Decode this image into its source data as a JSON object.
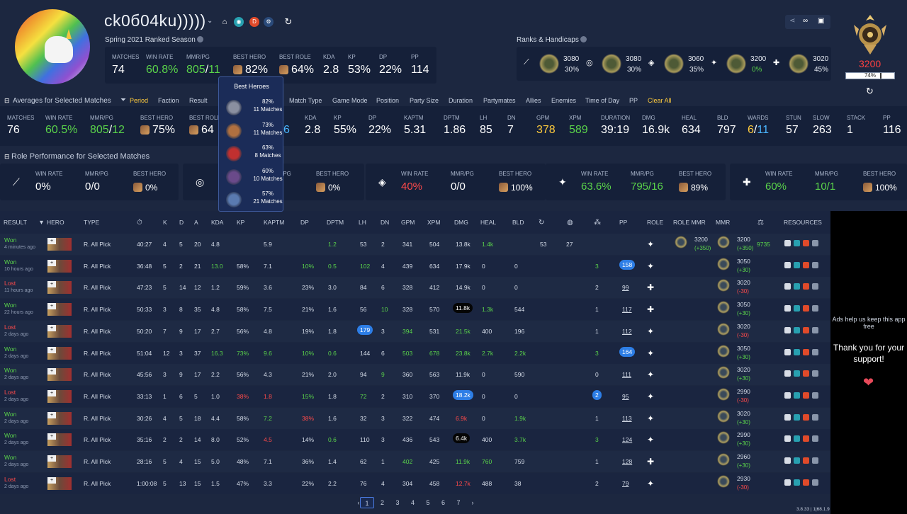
{
  "profile": {
    "name": "ck0б04ku)))))",
    "season": "Spring 2021 Ranked Season"
  },
  "summary": [
    {
      "label": "MATCHES",
      "value": "74",
      "color": "#ffffff"
    },
    {
      "label": "WIN RATE",
      "value": "60.8%",
      "color": "#5ad44a"
    },
    {
      "label": "MMR/PG",
      "value": "805",
      "value2": "11",
      "color": "#5ad44a"
    },
    {
      "label": "BEST HERO",
      "value": "82%",
      "color": "#ffffff"
    },
    {
      "label": "BEST ROLE",
      "value": "64%",
      "color": "#ffffff"
    },
    {
      "label": "KDA",
      "value": "2.8",
      "color": "#ffffff"
    },
    {
      "label": "KP",
      "value": "53%",
      "color": "#ffffff"
    },
    {
      "label": "DP",
      "value": "22%",
      "color": "#ffffff"
    },
    {
      "label": "PP",
      "value": "114",
      "color": "#ffffff"
    }
  ],
  "ranks_title": "Ranks & Handicaps",
  "ranks": [
    {
      "icon": "sword-icon",
      "mmr": "3080",
      "pct": "30%",
      "pct_color": "#e8ecf4"
    },
    {
      "icon": "target-icon",
      "mmr": "3080",
      "pct": "30%",
      "pct_color": "#e8ecf4"
    },
    {
      "icon": "shield-icon",
      "mmr": "3060",
      "pct": "35%",
      "pct_color": "#e8ecf4"
    },
    {
      "icon": "hand-icon",
      "mmr": "3200",
      "pct": "0%",
      "pct_color": "#5ad44a"
    },
    {
      "icon": "heal-icon",
      "mmr": "3020",
      "pct": "45%",
      "pct_color": "#e8ecf4"
    }
  ],
  "mmr_big": "3200",
  "mmr_pct": "74%",
  "averages_title": "Averages for Selected Matches",
  "filters": [
    "Period",
    "Faction",
    "Result",
    "Match Type",
    "Game Mode",
    "Position",
    "Party Size",
    "Duration",
    "Partymates",
    "Allies",
    "Enemies",
    "Time of Day",
    "PP",
    "Clear All"
  ],
  "averages": [
    {
      "label": "MATCHES",
      "value": "76",
      "color": "#ffffff"
    },
    {
      "label": "WIN RATE",
      "value": "60.5%",
      "color": "#5ad44a"
    },
    {
      "label": "MMR/PG",
      "value": "805",
      "value2": "12",
      "color": "#5ad44a"
    },
    {
      "label": "BEST HERO",
      "value": "75%",
      "color": "#ffffff"
    },
    {
      "label": "BEST ROLE",
      "value": "64",
      "color": "#ffffff"
    },
    {
      "label": "KDA",
      "value": "2.8",
      "color": "#ffffff"
    },
    {
      "label": "KP",
      "value": "55%",
      "color": "#ffffff"
    },
    {
      "label": "DP",
      "value": "22%",
      "color": "#ffffff"
    },
    {
      "label": "KAPTM",
      "value": "5.31",
      "color": "#ffffff"
    },
    {
      "label": "DPTM",
      "value": "1.86",
      "color": "#ffffff"
    },
    {
      "label": "LH",
      "value": "85",
      "color": "#ffffff"
    },
    {
      "label": "DN",
      "value": "7",
      "color": "#ffffff"
    },
    {
      "label": "GPM",
      "value": "378",
      "color": "#ffcb3d"
    },
    {
      "label": "XPM",
      "value": "589",
      "color": "#5ad44a"
    },
    {
      "label": "DURATION",
      "value": "39:19",
      "color": "#ffffff"
    },
    {
      "label": "DMG",
      "value": "16.9k",
      "color": "#ffffff"
    },
    {
      "label": "HEAL",
      "value": "634",
      "color": "#ffffff"
    },
    {
      "label": "BLD",
      "value": "797",
      "color": "#ffffff"
    },
    {
      "label": "WARDS",
      "value": "6",
      "value2": "11",
      "color": "#ffcb3d"
    },
    {
      "label": "STUN",
      "value": "57",
      "color": "#ffffff"
    },
    {
      "label": "SLOW",
      "value": "263",
      "color": "#ffffff"
    },
    {
      "label": "STACK",
      "value": "1",
      "color": "#ffffff"
    },
    {
      "label": "PP",
      "value": "116",
      "color": "#ffffff"
    }
  ],
  "avg_partial": "6",
  "role_title": "Role Performance for Selected Matches",
  "roles": [
    {
      "icon": "sword-icon",
      "wr": "0%",
      "wr_color": "#ffffff",
      "mmr": "0/0",
      "mmr_color": "#ffffff",
      "best": "0%"
    },
    {
      "icon": "target-icon",
      "wr": "",
      "wr_color": "#ffffff",
      "mmr": "0",
      "mmr_color": "#ffffff",
      "best": "0%"
    },
    {
      "icon": "shield-icon",
      "wr": "40%",
      "wr_color": "#ff4a4a",
      "mmr": "0/0",
      "mmr_color": "#ffffff",
      "best": "100%"
    },
    {
      "icon": "hand-icon",
      "wr": "63.6%",
      "wr_color": "#5ad44a",
      "mmr": "795/16",
      "mmr_color": "#5ad44a",
      "best": "89%"
    },
    {
      "icon": "heal-icon",
      "wr": "60%",
      "wr_color": "#5ad44a",
      "mmr": "10/1",
      "mmr_color": "#5ad44a",
      "best": "100%"
    }
  ],
  "role_labels": {
    "wr": "WIN RATE",
    "mmr": "MMR/PG",
    "best": "BEST HERO"
  },
  "tooltip": {
    "title": "Best Heroes",
    "rows": [
      {
        "pct": "82%",
        "matches": "11 Matches"
      },
      {
        "pct": "73%",
        "matches": "11 Matches"
      },
      {
        "pct": "63%",
        "matches": "8 Matches"
      },
      {
        "pct": "60%",
        "matches": "10 Matches"
      },
      {
        "pct": "57%",
        "matches": "21 Matches"
      }
    ]
  },
  "table": {
    "headers": {
      "result": "RESULT",
      "hero": "HERO",
      "type": "TYPE",
      "k": "K",
      "d": "D",
      "a": "A",
      "kda": "KDA",
      "kp": "KP",
      "kaptm": "KAPTM",
      "dp": "DP",
      "dptm": "DPTM",
      "lh": "LH",
      "dn": "DN",
      "gpm": "GPM",
      "xpm": "XPM",
      "dmg": "DMG",
      "heal": "HEAL",
      "bld": "BLD",
      "pp": "PP",
      "role": "ROLE",
      "rolemmr": "ROLE MMR",
      "mmr": "MMR",
      "resources": "RESOURCES"
    },
    "rows": [
      {
        "res": "Won",
        "ago": "4 minutes ago",
        "type": "R. All Pick",
        "dur": "40:27",
        "k": "4",
        "d": "5",
        "a": "20",
        "kda": "4.8",
        "kp": "",
        "kaptm": "5.9",
        "dp": "",
        "dptm": "1.2",
        "lh": "53",
        "dn": "2",
        "gpm": "341",
        "xpm": "504",
        "dmg": "13.8k",
        "heal": "1.4k",
        "bld": "",
        "c1": "53",
        "c2": "27",
        "c3": "",
        "pp": "",
        "rolemmr": "3200",
        "rolemmrd": "(+350)",
        "mmr": "3200",
        "mmrd": "(+350)",
        "extra": "9735"
      },
      {
        "res": "Won",
        "ago": "10 hours ago",
        "type": "R. All Pick",
        "dur": "36:48",
        "k": "5",
        "d": "2",
        "a": "21",
        "kda": "13.0",
        "kp": "58%",
        "kaptm": "7.1",
        "dp": "10%",
        "dptm": "0.5",
        "lh": "102",
        "dn": "4",
        "gpm": "439",
        "xpm": "634",
        "dmg": "17.9k",
        "heal": "0",
        "bld": "0",
        "c1": "",
        "c2": "",
        "c3": "3",
        "pp": "158",
        "rolemmr": "",
        "rolemmrd": "",
        "mmr": "3050",
        "mmrd": "(+30)",
        "extra": ""
      },
      {
        "res": "Lost",
        "ago": "11 hours ago",
        "type": "R. All Pick",
        "dur": "47:23",
        "k": "5",
        "d": "14",
        "a": "12",
        "kda": "1.2",
        "kp": "59%",
        "kaptm": "3.6",
        "dp": "23%",
        "dptm": "3.0",
        "lh": "84",
        "dn": "6",
        "gpm": "328",
        "xpm": "412",
        "dmg": "14.9k",
        "heal": "0",
        "bld": "0",
        "c1": "",
        "c2": "",
        "c3": "2",
        "pp": "99",
        "rolemmr": "",
        "rolemmrd": "",
        "mmr": "3020",
        "mmrd": "(-30)",
        "extra": ""
      },
      {
        "res": "Won",
        "ago": "22 hours ago",
        "type": "R. All Pick",
        "dur": "50:33",
        "k": "3",
        "d": "8",
        "a": "35",
        "kda": "4.8",
        "kp": "58%",
        "kaptm": "7.5",
        "dp": "21%",
        "dptm": "1.6",
        "lh": "56",
        "dn": "10",
        "gpm": "328",
        "xpm": "570",
        "dmg": "11.8k",
        "heal": "1.3k",
        "bld": "544",
        "c1": "",
        "c2": "",
        "c3": "1",
        "pp": "117",
        "rolemmr": "",
        "rolemmrd": "",
        "mmr": "3050",
        "mmrd": "(+30)",
        "extra": ""
      },
      {
        "res": "Lost",
        "ago": "2 days ago",
        "type": "R. All Pick",
        "dur": "50:20",
        "k": "7",
        "d": "9",
        "a": "17",
        "kda": "2.7",
        "kp": "56%",
        "kaptm": "4.8",
        "dp": "19%",
        "dptm": "1.8",
        "lh": "179",
        "dn": "3",
        "gpm": "394",
        "xpm": "531",
        "dmg": "21.5k",
        "heal": "400",
        "bld": "196",
        "c1": "",
        "c2": "",
        "c3": "1",
        "pp": "112",
        "rolemmr": "",
        "rolemmrd": "",
        "mmr": "3020",
        "mmrd": "(-30)",
        "extra": ""
      },
      {
        "res": "Won",
        "ago": "2 days ago",
        "type": "R. All Pick",
        "dur": "51:04",
        "k": "12",
        "d": "3",
        "a": "37",
        "kda": "16.3",
        "kp": "73%",
        "kaptm": "9.6",
        "dp": "10%",
        "dptm": "0.6",
        "lh": "144",
        "dn": "6",
        "gpm": "503",
        "xpm": "678",
        "dmg": "23.8k",
        "heal": "2.7k",
        "bld": "2.2k",
        "c1": "",
        "c2": "",
        "c3": "3",
        "pp": "164",
        "rolemmr": "",
        "rolemmrd": "",
        "mmr": "3050",
        "mmrd": "(+30)",
        "extra": ""
      },
      {
        "res": "Won",
        "ago": "2 days ago",
        "type": "R. All Pick",
        "dur": "45:56",
        "k": "3",
        "d": "9",
        "a": "17",
        "kda": "2.2",
        "kp": "56%",
        "kaptm": "4.3",
        "dp": "21%",
        "dptm": "2.0",
        "lh": "94",
        "dn": "9",
        "gpm": "360",
        "xpm": "563",
        "dmg": "11.9k",
        "heal": "0",
        "bld": "590",
        "c1": "",
        "c2": "",
        "c3": "0",
        "pp": "111",
        "rolemmr": "",
        "rolemmrd": "",
        "mmr": "3020",
        "mmrd": "(+30)",
        "extra": ""
      },
      {
        "res": "Lost",
        "ago": "2 days ago",
        "type": "R. All Pick",
        "dur": "33:13",
        "k": "1",
        "d": "6",
        "a": "5",
        "kda": "1.0",
        "kp": "38%",
        "kaptm": "1.8",
        "dp": "15%",
        "dptm": "1.8",
        "lh": "72",
        "dn": "2",
        "gpm": "310",
        "xpm": "370",
        "dmg": "18.2k",
        "heal": "0",
        "bld": "0",
        "c1": "",
        "c2": "",
        "c3": "2",
        "pp": "95",
        "rolemmr": "",
        "rolemmrd": "",
        "mmr": "2990",
        "mmrd": "(-30)",
        "extra": ""
      },
      {
        "res": "Won",
        "ago": "2 days ago",
        "type": "R. All Pick",
        "dur": "30:26",
        "k": "4",
        "d": "5",
        "a": "18",
        "kda": "4.4",
        "kp": "58%",
        "kaptm": "7.2",
        "dp": "38%",
        "dptm": "1.6",
        "lh": "32",
        "dn": "3",
        "gpm": "322",
        "xpm": "474",
        "dmg": "6.9k",
        "heal": "0",
        "bld": "1.9k",
        "c1": "",
        "c2": "",
        "c3": "1",
        "pp": "113",
        "rolemmr": "",
        "rolemmrd": "",
        "mmr": "3020",
        "mmrd": "(+30)",
        "extra": ""
      },
      {
        "res": "Won",
        "ago": "2 days ago",
        "type": "R. All Pick",
        "dur": "35:16",
        "k": "2",
        "d": "2",
        "a": "14",
        "kda": "8.0",
        "kp": "52%",
        "kaptm": "4.5",
        "dp": "14%",
        "dptm": "0.6",
        "lh": "110",
        "dn": "3",
        "gpm": "436",
        "xpm": "543",
        "dmg": "6.4k",
        "heal": "400",
        "bld": "3.7k",
        "c1": "",
        "c2": "",
        "c3": "3",
        "pp": "124",
        "rolemmr": "",
        "rolemmrd": "",
        "mmr": "2990",
        "mmrd": "(+30)",
        "extra": ""
      },
      {
        "res": "Won",
        "ago": "2 days ago",
        "type": "R. All Pick",
        "dur": "28:16",
        "k": "5",
        "d": "4",
        "a": "15",
        "kda": "5.0",
        "kp": "48%",
        "kaptm": "7.1",
        "dp": "36%",
        "dptm": "1.4",
        "lh": "62",
        "dn": "1",
        "gpm": "402",
        "xpm": "425",
        "dmg": "11.9k",
        "heal": "760",
        "bld": "759",
        "c1": "",
        "c2": "",
        "c3": "1",
        "pp": "128",
        "rolemmr": "",
        "rolemmrd": "",
        "mmr": "2960",
        "mmrd": "(+30)",
        "extra": ""
      },
      {
        "res": "Lost",
        "ago": "2 days ago",
        "type": "R. All Pick",
        "dur": "1:00:08",
        "k": "5",
        "d": "13",
        "a": "15",
        "kda": "1.5",
        "kp": "47%",
        "kaptm": "3.3",
        "dp": "22%",
        "dptm": "2.2",
        "lh": "76",
        "dn": "4",
        "gpm": "304",
        "xpm": "458",
        "dmg": "12.7k",
        "heal": "488",
        "bld": "38",
        "c1": "",
        "c2": "",
        "c3": "2",
        "pp": "79",
        "rolemmr": "",
        "rolemmrd": "",
        "mmr": "2930",
        "mmrd": "(-30)",
        "extra": ""
      }
    ]
  },
  "pages": [
    "1",
    "2",
    "3",
    "4",
    "5",
    "6",
    "7"
  ],
  "ad": {
    "line1": "Ads help us keep this app free",
    "line2": "Thank you for your support!"
  },
  "version": "3.8.33 | 1|68.1.9",
  "colors": {
    "win": "#5ad44a",
    "loss": "#ff4a4a",
    "accent": "#ffcb3d",
    "pill": "#2d7ee6"
  }
}
